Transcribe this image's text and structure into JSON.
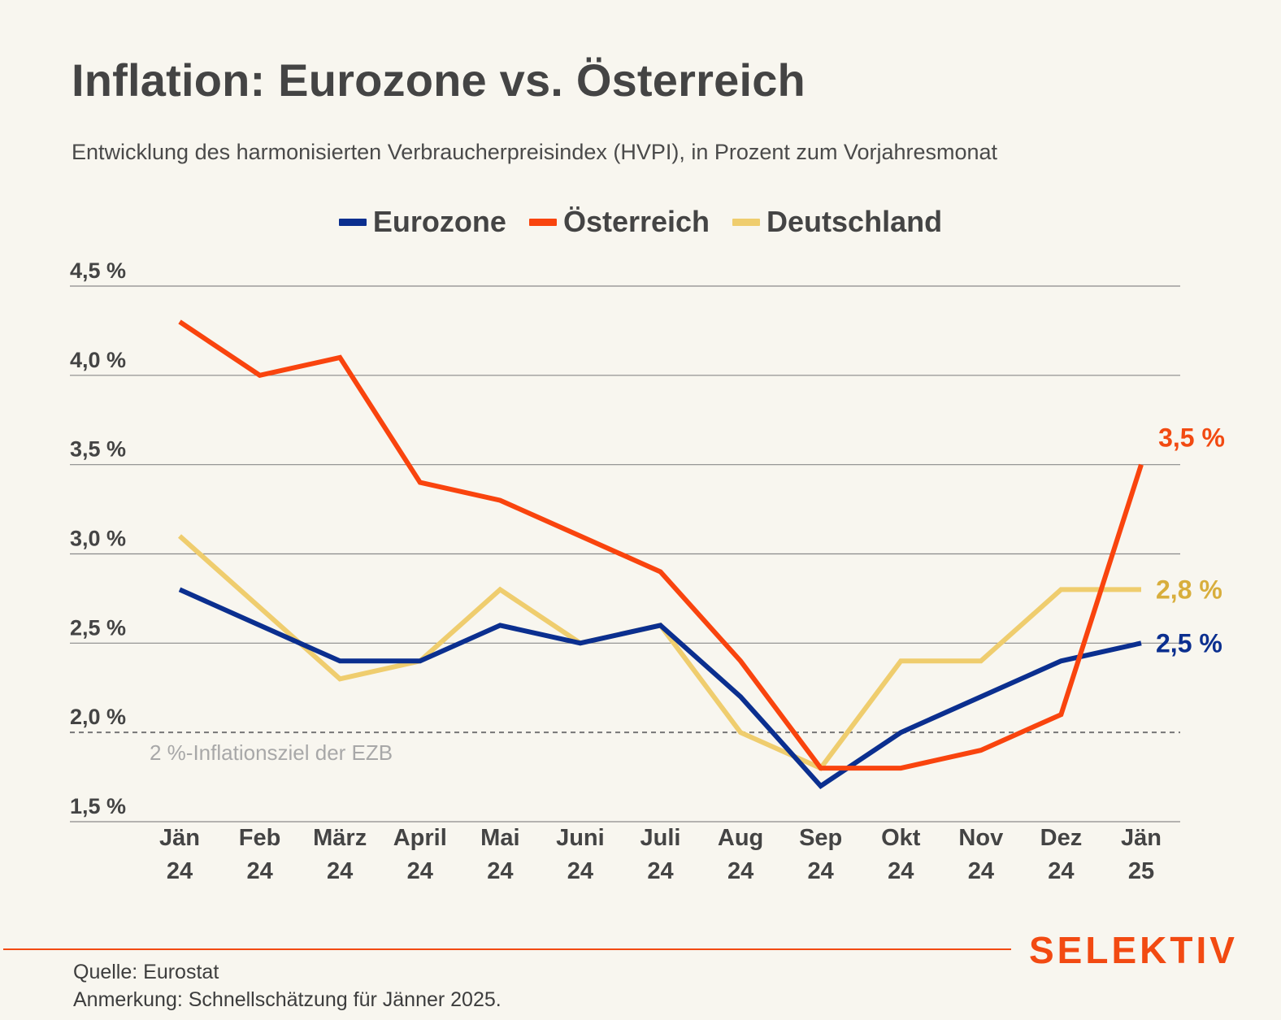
{
  "title": "Inflation: Eurozone vs. Österreich",
  "subtitle": "Entwicklung des harmonisierten Verbraucherpreisindex (HVPI), in Prozent zum Vorjahresmonat",
  "legend": [
    {
      "name": "Eurozone",
      "color": "#0b2f8f"
    },
    {
      "name": "Österreich",
      "color": "#f9440e"
    },
    {
      "name": "Deutschland",
      "color": "#efcd6e"
    }
  ],
  "chart_data": {
    "type": "line",
    "title": "Inflation: Eurozone vs. Österreich",
    "x": [
      [
        "Jän",
        "24"
      ],
      [
        "Feb",
        "24"
      ],
      [
        "März",
        "24"
      ],
      [
        "April",
        "24"
      ],
      [
        "Mai",
        "24"
      ],
      [
        "Juni",
        "24"
      ],
      [
        "Juli",
        "24"
      ],
      [
        "Aug",
        "24"
      ],
      [
        "Sep",
        "24"
      ],
      [
        "Okt",
        "24"
      ],
      [
        "Nov",
        "24"
      ],
      [
        "Dez",
        "24"
      ],
      [
        "Jän",
        "25"
      ]
    ],
    "ylim": [
      1.5,
      4.5
    ],
    "yticks": [
      {
        "value": 4.5,
        "label": "4,5 %"
      },
      {
        "value": 4.0,
        "label": "4,0 %"
      },
      {
        "value": 3.5,
        "label": "3,5 %"
      },
      {
        "value": 3.0,
        "label": "3,0 %"
      },
      {
        "value": 2.5,
        "label": "2,5 %"
      },
      {
        "value": 2.0,
        "label": "2,0 %"
      },
      {
        "value": 1.5,
        "label": "1,5 %"
      }
    ],
    "grid": true,
    "series": [
      {
        "name": "Eurozone",
        "color": "#0b2f8f",
        "values": [
          2.8,
          2.6,
          2.4,
          2.4,
          2.6,
          2.5,
          2.6,
          2.2,
          1.7,
          2.0,
          2.2,
          2.4,
          2.5
        ],
        "end_label": "2,5 %",
        "label_color": "#0b2f8f"
      },
      {
        "name": "Österreich",
        "color": "#f9440e",
        "values": [
          4.3,
          4.0,
          4.1,
          3.4,
          3.3,
          3.1,
          2.9,
          2.4,
          1.8,
          1.8,
          1.9,
          2.1,
          3.5
        ],
        "end_label": "3,5 %",
        "label_color": "#f24a12"
      },
      {
        "name": "Deutschland",
        "color": "#efcd6e",
        "values": [
          3.1,
          2.7,
          2.3,
          2.4,
          2.8,
          2.5,
          2.6,
          2.0,
          1.8,
          2.4,
          2.4,
          2.8,
          2.8
        ],
        "end_label": "2,8 %",
        "label_color": "#d8ae3c"
      }
    ],
    "reference_line": {
      "value": 2.0,
      "label": "2 %-Inflationsziel der EZB",
      "style": "dashed"
    }
  },
  "brand": "SELEKTIV",
  "source": "Quelle: Eurostat",
  "note": "Anmerkung: Schnellschätzung für Jänner 2025."
}
